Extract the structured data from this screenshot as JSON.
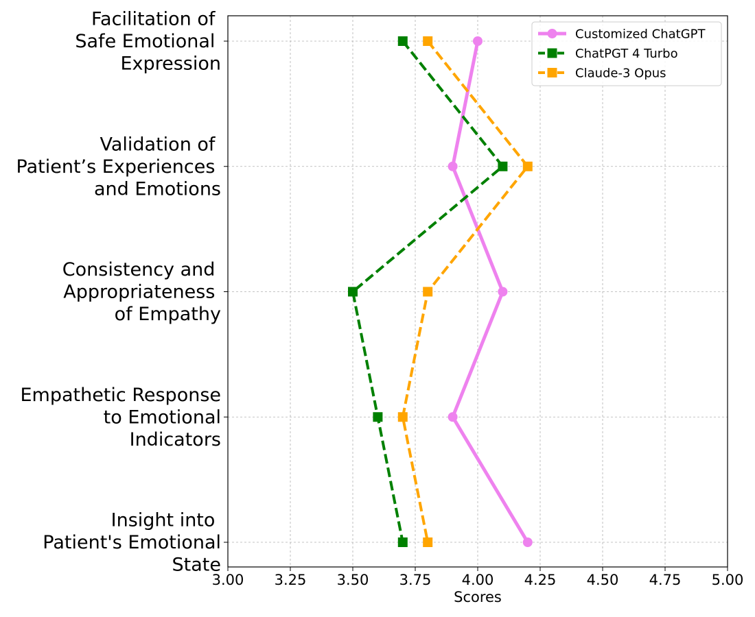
{
  "chart_data": {
    "type": "line",
    "orientation": "horizontal",
    "title": "",
    "xlabel": "Scores",
    "ylabel": "",
    "xlim": [
      3.0,
      5.0
    ],
    "xticks": [
      3.0,
      3.25,
      3.5,
      3.75,
      4.0,
      4.25,
      4.5,
      4.75,
      5.0
    ],
    "xtick_labels": [
      "3.00",
      "3.25",
      "3.50",
      "3.75",
      "4.00",
      "4.25",
      "4.50",
      "4.75",
      "5.00"
    ],
    "grid": true,
    "legend_position": "top-right",
    "categories": [
      [
        "Facilitation of ",
        "Safe Emotional ",
        "Expression"
      ],
      [
        "Validation of ",
        "Patient’s Experiences ",
        "and Emotions"
      ],
      [
        "Consistency and ",
        "Appropriateness ",
        "of Empathy"
      ],
      [
        "Empathetic Response",
        "to Emotional",
        "Indicators"
      ],
      [
        "Insight into ",
        "Patient's Emotional",
        "State"
      ]
    ],
    "series": [
      {
        "name": "Customized ChatGPT",
        "values": [
          4.0,
          3.9,
          4.1,
          3.9,
          4.2
        ],
        "color": "#ee82ee",
        "marker": "circle",
        "line_style": "solid"
      },
      {
        "name": "ChatPGT 4 Turbo",
        "values": [
          3.7,
          4.1,
          3.5,
          3.6,
          3.7
        ],
        "color": "#008000",
        "marker": "square",
        "line_style": "dashed"
      },
      {
        "name": "Claude-3 Opus",
        "values": [
          3.8,
          4.2,
          3.8,
          3.7,
          3.8
        ],
        "color": "#ffa500",
        "marker": "square",
        "line_style": "dashed"
      }
    ]
  }
}
